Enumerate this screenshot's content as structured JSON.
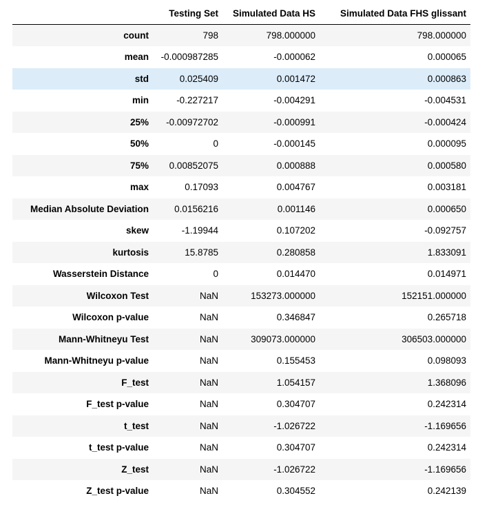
{
  "table": {
    "columns": [
      "",
      "Testing Set",
      "Simulated Data HS",
      "Simulated Data FHS glissant"
    ],
    "highlighted_row": "std",
    "rows": [
      {
        "label": "count",
        "values": [
          "798",
          "798.000000",
          "798.000000"
        ]
      },
      {
        "label": "mean",
        "values": [
          "-0.000987285",
          "-0.000062",
          "0.000065"
        ]
      },
      {
        "label": "std",
        "values": [
          "0.025409",
          "0.001472",
          "0.000863"
        ]
      },
      {
        "label": "min",
        "values": [
          "-0.227217",
          "-0.004291",
          "-0.004531"
        ]
      },
      {
        "label": "25%",
        "values": [
          "-0.00972702",
          "-0.000991",
          "-0.000424"
        ]
      },
      {
        "label": "50%",
        "values": [
          "0",
          "-0.000145",
          "0.000095"
        ]
      },
      {
        "label": "75%",
        "values": [
          "0.00852075",
          "0.000888",
          "0.000580"
        ]
      },
      {
        "label": "max",
        "values": [
          "0.17093",
          "0.004767",
          "0.003181"
        ]
      },
      {
        "label": "Median Absolute Deviation",
        "values": [
          "0.0156216",
          "0.001146",
          "0.000650"
        ]
      },
      {
        "label": "skew",
        "values": [
          "-1.19944",
          "0.107202",
          "-0.092757"
        ]
      },
      {
        "label": "kurtosis",
        "values": [
          "15.8785",
          "0.280858",
          "1.833091"
        ]
      },
      {
        "label": "Wasserstein Distance",
        "values": [
          "0",
          "0.014470",
          "0.014971"
        ]
      },
      {
        "label": "Wilcoxon Test",
        "values": [
          "NaN",
          "153273.000000",
          "152151.000000"
        ]
      },
      {
        "label": "Wilcoxon p-value",
        "values": [
          "NaN",
          "0.346847",
          "0.265718"
        ]
      },
      {
        "label": "Mann-Whitneyu Test",
        "values": [
          "NaN",
          "309073.000000",
          "306503.000000"
        ]
      },
      {
        "label": "Mann-Whitneyu p-value",
        "values": [
          "NaN",
          "0.155453",
          "0.098093"
        ]
      },
      {
        "label": "F_test",
        "values": [
          "NaN",
          "1.054157",
          "1.368096"
        ]
      },
      {
        "label": "F_test p-value",
        "values": [
          "NaN",
          "0.304707",
          "0.242314"
        ]
      },
      {
        "label": "t_test",
        "values": [
          "NaN",
          "-1.026722",
          "-1.169656"
        ]
      },
      {
        "label": "t_test p-value",
        "values": [
          "NaN",
          "0.304707",
          "0.242314"
        ]
      },
      {
        "label": "Z_test",
        "values": [
          "NaN",
          "-1.026722",
          "-1.169656"
        ]
      },
      {
        "label": "Z_test p-value",
        "values": [
          "NaN",
          "0.304552",
          "0.242139"
        ]
      }
    ]
  }
}
